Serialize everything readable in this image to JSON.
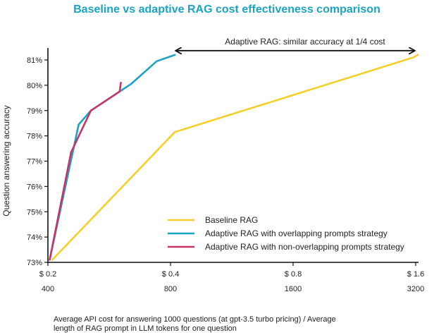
{
  "chart_data": {
    "type": "line",
    "title": "Baseline vs adaptive RAG cost effectiveness comparison",
    "ylabel": "Question answering accuracy",
    "xlabel_lines": [
      "Average API cost for answering 1000 questions (at gpt-3.5 turbo pricing) / Average",
      "length of RAG prompt in LLM tokens for one question"
    ],
    "x_ticks_primary": [
      "$ 0.2",
      "$ 0.4",
      "$ 0.8",
      "$ 1.6"
    ],
    "x_ticks_secondary": [
      "400",
      "800",
      "1600",
      "3200"
    ],
    "x_tick_values": [
      0.2,
      0.4,
      0.8,
      1.6
    ],
    "x_scale": "log2",
    "xlim": [
      0.2,
      1.6
    ],
    "ylim": [
      73,
      81.5
    ],
    "y_ticks": [
      73,
      74,
      75,
      76,
      77,
      78,
      79,
      80,
      81
    ],
    "y_tick_labels": [
      "73%",
      "74%",
      "75%",
      "76%",
      "77%",
      "78%",
      "79%",
      "80%",
      "81%"
    ],
    "series": [
      {
        "name": "Baseline RAG",
        "color": "#f5cf2a",
        "x": [
          0.205,
          0.41,
          1.58,
          1.62
        ],
        "y": [
          73.1,
          78.15,
          81.1,
          81.2
        ]
      },
      {
        "name": "Adaptive RAG with overlapping prompts strategy",
        "color": "#1aa3c2",
        "x": [
          0.202,
          0.238,
          0.255,
          0.32,
          0.37,
          0.41
        ],
        "y": [
          73.1,
          78.45,
          79.0,
          80.05,
          80.95,
          81.2
        ]
      },
      {
        "name": "Adaptive RAG with non-overlapping prompts strategy",
        "color": "#c8336a",
        "x": [
          0.202,
          0.228,
          0.255,
          0.3,
          0.302
        ],
        "y": [
          73.1,
          77.35,
          79.0,
          79.75,
          80.1
        ]
      }
    ],
    "annotation": {
      "text": "Adaptive RAG: similar accuracy at 1/4 cost",
      "arrow_from": [
        0.41,
        81.2
      ],
      "arrow_to": [
        1.6,
        81.2
      ]
    },
    "legend_position": "lower-right",
    "grid": false
  }
}
